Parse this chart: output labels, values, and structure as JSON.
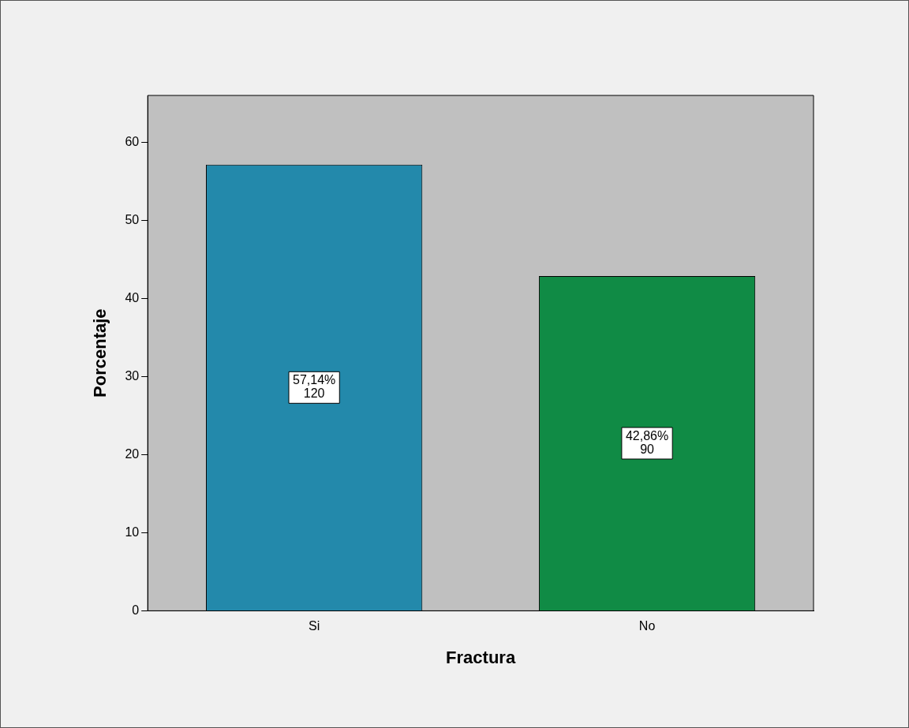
{
  "chart_data": {
    "type": "bar",
    "xlabel": "Fractura",
    "ylabel": "Porcentaje",
    "categories": [
      "Si",
      "No"
    ],
    "values": [
      57.14,
      42.86
    ],
    "colors": [
      "#2389ab",
      "#108b45"
    ],
    "value_labels": [
      "57,14%\n120",
      "42,86%\n90"
    ],
    "ylim": [
      0,
      66
    ],
    "yticks": [
      0,
      10,
      20,
      30,
      40,
      50,
      60
    ],
    "grid": false,
    "legend": false
  }
}
